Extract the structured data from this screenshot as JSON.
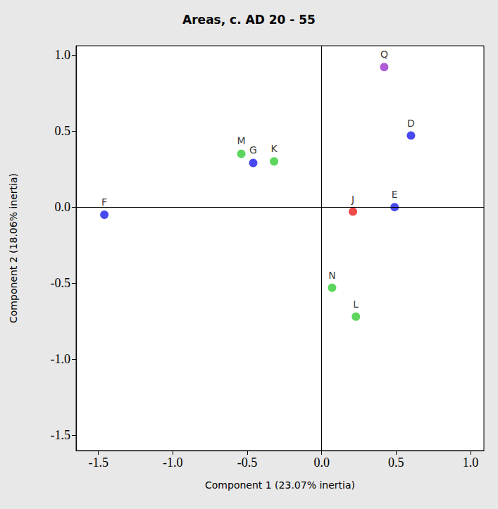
{
  "chart_data": {
    "type": "scatter",
    "title": "Areas, c. AD 20 - 55",
    "x_label": "Component 1 (23.07% inertia)",
    "y_label": "Component 2 (18.06% inertia)",
    "point_labels": [
      "F",
      "M",
      "G",
      "K",
      "J",
      "E",
      "D",
      "Q",
      "N",
      "L"
    ],
    "x": [
      -1.46,
      -0.54,
      -0.46,
      -0.32,
      0.21,
      0.49,
      0.6,
      0.42,
      0.07,
      0.23
    ],
    "values": [
      -0.05,
      0.35,
      0.29,
      0.3,
      -0.03,
      0.0,
      0.47,
      0.92,
      -0.53,
      -0.72
    ],
    "colors": [
      "#1a1aee",
      "#33cc33",
      "#1a1aee",
      "#33cc33",
      "#ee1a1a",
      "#1a1aee",
      "#1a1aee",
      "#9933cc",
      "#33cc33",
      "#33cc33"
    ],
    "xlim": [
      -1.65,
      1.09
    ],
    "ylim": [
      -1.6,
      1.06
    ],
    "xticks": [
      {
        "value": -1.5,
        "label": "-1.5"
      },
      {
        "value": -1.0,
        "label": "-1.0"
      },
      {
        "value": -0.5,
        "label": "-0.5"
      },
      {
        "value": 0.0,
        "label": "0.0"
      },
      {
        "value": 0.5,
        "label": "0.5"
      },
      {
        "value": 1.0,
        "label": "1.0"
      }
    ],
    "yticks": [
      {
        "value": -1.5,
        "label": "-1.5"
      },
      {
        "value": -1.0,
        "label": "-1.0"
      },
      {
        "value": -0.5,
        "label": "-0.5"
      },
      {
        "value": 0.0,
        "label": "0.0"
      },
      {
        "value": 0.5,
        "label": "0.5"
      },
      {
        "value": 1.0,
        "label": "1.0"
      }
    ],
    "grid": false
  }
}
